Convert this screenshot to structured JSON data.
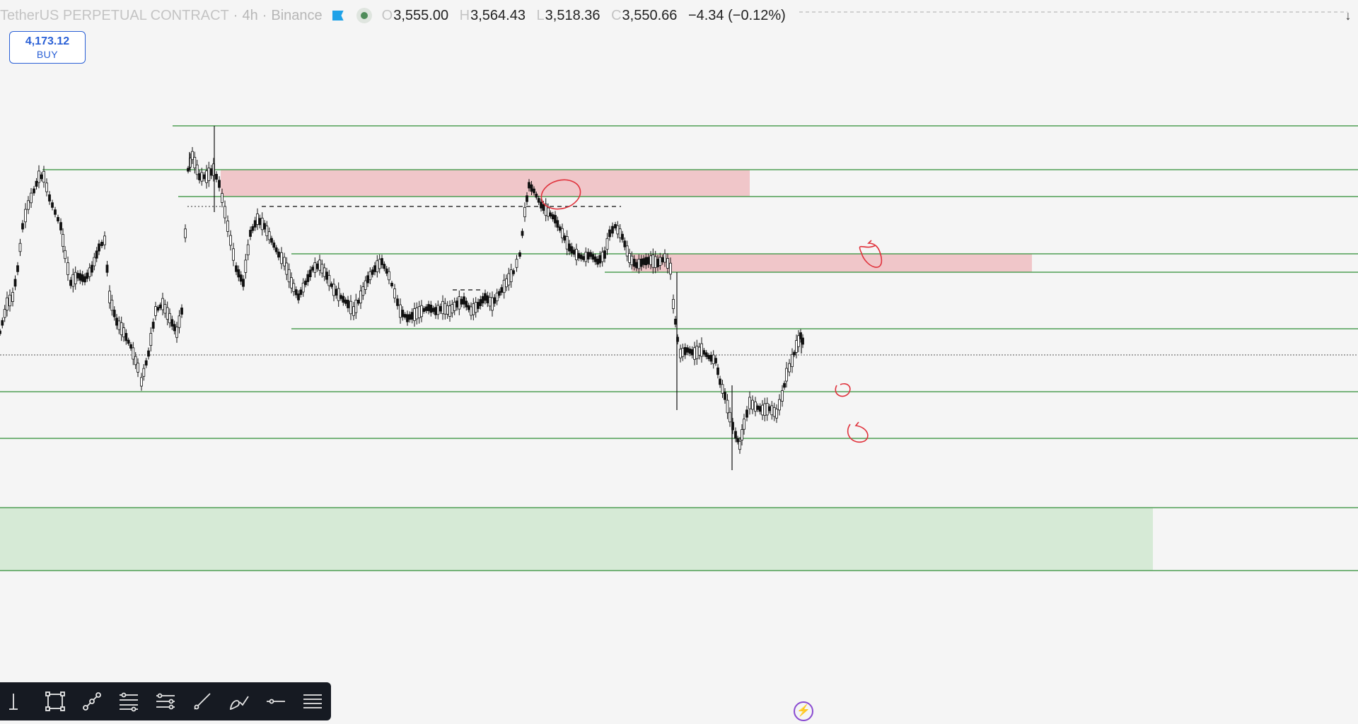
{
  "legend": {
    "title": "TetherUS PERPETUAL CONTRACT",
    "sep1": "·",
    "interval": "4h",
    "sep2": "·",
    "exchange": "Binance",
    "open_key": "O",
    "open": "3,555.00",
    "high_key": "H",
    "high": "3,564.43",
    "low_key": "L",
    "low": "3,518.36",
    "close_key": "C",
    "close": "3,550.66",
    "change": "−4.34 (−0.12%)"
  },
  "order_box": {
    "price": "4,173.12",
    "label": "BUY"
  },
  "scroll_icon": "arrow-down-icon",
  "colors": {
    "background": "#f5f5f5",
    "candle": "#111111",
    "level_line": "#4e9e55",
    "supply_zone": "#f0c6c9",
    "demand_zone": "#d6ead6",
    "annotation": "#e0323c",
    "toolbar_bg": "#161a22",
    "accent_blue": "#2a60d6"
  },
  "toolbar": {
    "tools": [
      {
        "name": "text-cursor-tool",
        "icon": "text-cursor-icon"
      },
      {
        "name": "rectangle-tool",
        "icon": "rectangle-icon"
      },
      {
        "name": "trend-line-tool",
        "icon": "trend-line-icon"
      },
      {
        "name": "fib-retracement-tool",
        "icon": "fib-retracement-icon"
      },
      {
        "name": "parallel-channel-tool",
        "icon": "parallel-channel-icon"
      },
      {
        "name": "ray-tool",
        "icon": "ray-icon"
      },
      {
        "name": "brush-tool",
        "icon": "brush-icon"
      },
      {
        "name": "horizontal-line-tool",
        "icon": "horizontal-line-icon"
      },
      {
        "name": "more-tools",
        "icon": "menu-icon"
      }
    ]
  },
  "lightning_icon": "lightning-icon"
}
